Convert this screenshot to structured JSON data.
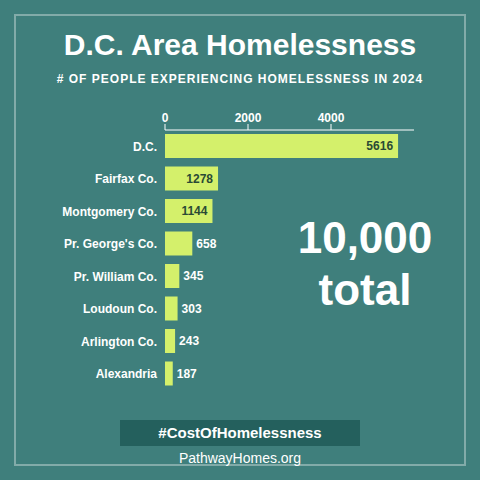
{
  "chart_data": {
    "type": "bar",
    "orientation": "horizontal",
    "title": "D.C. Area Homelessness",
    "subtitle": "# OF PEOPLE EXPERIENCING HOMELESSNESS IN 2024",
    "categories": [
      "D.C.",
      "Fairfax Co.",
      "Montgomery Co.",
      "Pr. George's Co.",
      "Pr. William Co.",
      "Loudoun Co.",
      "Arlington Co.",
      "Alexandria"
    ],
    "values": [
      5616,
      1278,
      1144,
      658,
      345,
      303,
      243,
      187
    ],
    "color": "#d4f06b",
    "xlim": [
      0,
      6000
    ],
    "xticks": [
      0,
      2000,
      4000
    ],
    "grid": false,
    "data_labels": true,
    "annotations": [
      "10,000 total",
      "#CostOfHomelessness",
      "PathwayHomes.org"
    ]
  }
}
